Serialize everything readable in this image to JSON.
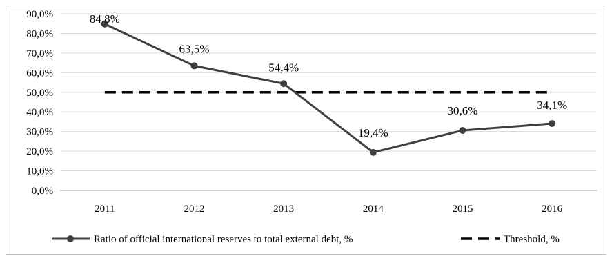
{
  "chart_data": {
    "type": "line",
    "categories": [
      "2011",
      "2012",
      "2013",
      "2014",
      "2015",
      "2016"
    ],
    "ylim": [
      0,
      90
    ],
    "ytick_labels": [
      "0,0%",
      "10,0%",
      "20,0%",
      "30,0%",
      "40,0%",
      "50,0%",
      "60,0%",
      "70,0%",
      "80,0%",
      "90,0%"
    ],
    "grid": true,
    "legend_position": "bottom",
    "series": [
      {
        "name": "Ratio of official international reserves to total external debt, %",
        "values": [
          84.8,
          63.5,
          54.4,
          19.4,
          30.6,
          34.1
        ],
        "labels": [
          "84,8%",
          "63,5%",
          "54,4%",
          "19,4%",
          "30,6%",
          "34,1%"
        ],
        "style": "solid-with-markers",
        "color": "#404040"
      },
      {
        "name": "Threshold, %",
        "values": [
          50,
          50,
          50,
          50,
          50,
          50
        ],
        "style": "dashed",
        "color": "#000000"
      }
    ]
  }
}
